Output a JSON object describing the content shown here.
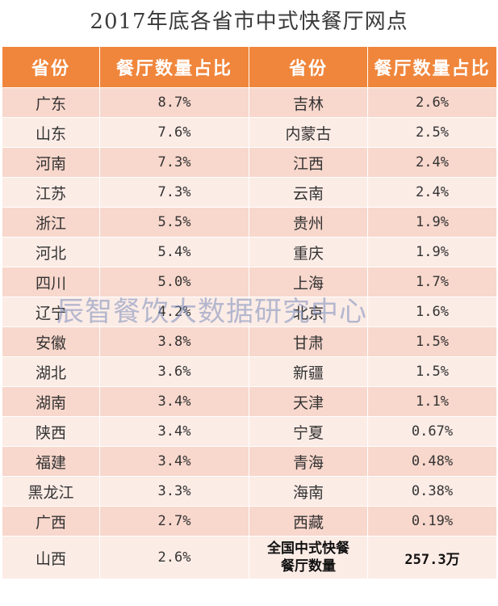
{
  "title": "2017年底各省市中式快餐厅网点",
  "headers": {
    "province": "省份",
    "share": "餐厅数量占比",
    "province2": "省份",
    "share2": "餐厅数量占比"
  },
  "rows": [
    {
      "p1": "广东",
      "v1": "8.7%",
      "p2": "吉林",
      "v2": "2.6%"
    },
    {
      "p1": "山东",
      "v1": "7.6%",
      "p2": "内蒙古",
      "v2": "2.5%"
    },
    {
      "p1": "河南",
      "v1": "7.3%",
      "p2": "江西",
      "v2": "2.4%"
    },
    {
      "p1": "江苏",
      "v1": "7.3%",
      "p2": "云南",
      "v2": "2.4%"
    },
    {
      "p1": "浙江",
      "v1": "5.5%",
      "p2": "贵州",
      "v2": "1.9%"
    },
    {
      "p1": "河北",
      "v1": "5.4%",
      "p2": "重庆",
      "v2": "1.9%"
    },
    {
      "p1": "四川",
      "v1": "5.0%",
      "p2": "上海",
      "v2": "1.7%"
    },
    {
      "p1": "辽宁",
      "v1": "4.2%",
      "p2": "北京",
      "v2": "1.6%"
    },
    {
      "p1": "安徽",
      "v1": "3.8%",
      "p2": "甘肃",
      "v2": "1.5%"
    },
    {
      "p1": "湖北",
      "v1": "3.6%",
      "p2": "新疆",
      "v2": "1.5%"
    },
    {
      "p1": "湖南",
      "v1": "3.4%",
      "p2": "天津",
      "v2": "1.1%"
    },
    {
      "p1": "陕西",
      "v1": "3.4%",
      "p2": "宁夏",
      "v2": "0.67%"
    },
    {
      "p1": "福建",
      "v1": "3.4%",
      "p2": "青海",
      "v2": "0.48%"
    },
    {
      "p1": "黑龙江",
      "v1": "3.3%",
      "p2": "海南",
      "v2": "0.38%"
    },
    {
      "p1": "广西",
      "v1": "2.7%",
      "p2": "西藏",
      "v2": "0.19%"
    }
  ],
  "last_row": {
    "p1": "山西",
    "v1": "2.6%",
    "total_label": "全国中式快餐\n餐厅数量",
    "total_value": "257.3万"
  },
  "watermark": "辰智餐饮大数据研究中心",
  "colors": {
    "header_bg": "#f0863c",
    "row_odd": "#f8d7cc",
    "row_even": "#fcece6"
  }
}
